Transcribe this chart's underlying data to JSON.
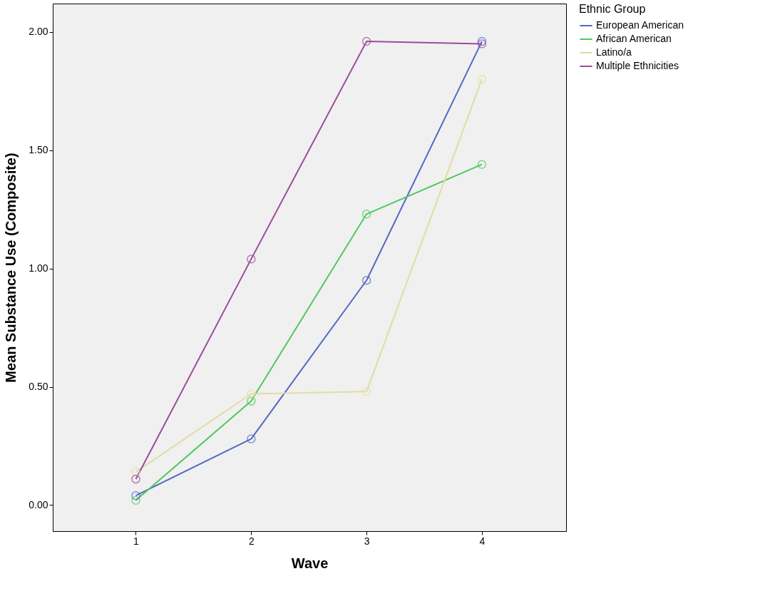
{
  "chart_data": {
    "type": "line",
    "xlabel": "Wave",
    "ylabel": "Mean Substance Use (Composite)",
    "legend_title": "Ethnic Group",
    "x": [
      1,
      2,
      3,
      4
    ],
    "series": [
      {
        "name": "European American",
        "color": "#5468c4",
        "values": [
          0.04,
          0.28,
          0.95,
          1.96
        ]
      },
      {
        "name": "African American",
        "color": "#4fc95a",
        "values": [
          0.02,
          0.44,
          1.23,
          1.44
        ]
      },
      {
        "name": "Latino/a",
        "color": "#e2dca2",
        "values": [
          0.14,
          0.47,
          0.48,
          1.8
        ]
      },
      {
        "name": "Multiple Ethnicities",
        "color": "#9b4c9c",
        "values": [
          0.11,
          1.04,
          1.96,
          1.95
        ]
      }
    ],
    "xlim": [
      0.28,
      4.73
    ],
    "xticks": [
      1,
      2,
      3,
      4
    ],
    "ylim": [
      -0.11,
      2.12
    ],
    "yticks": [
      {
        "value": 0,
        "label": "0.00"
      },
      {
        "value": 0.5,
        "label": "0.50"
      },
      {
        "value": 1,
        "label": "1.00"
      },
      {
        "value": 1.5,
        "label": "1.50"
      },
      {
        "value": 2,
        "label": "2.00"
      }
    ],
    "marker": "circle",
    "line_style": "solid",
    "grid": false,
    "legend": "top right"
  }
}
